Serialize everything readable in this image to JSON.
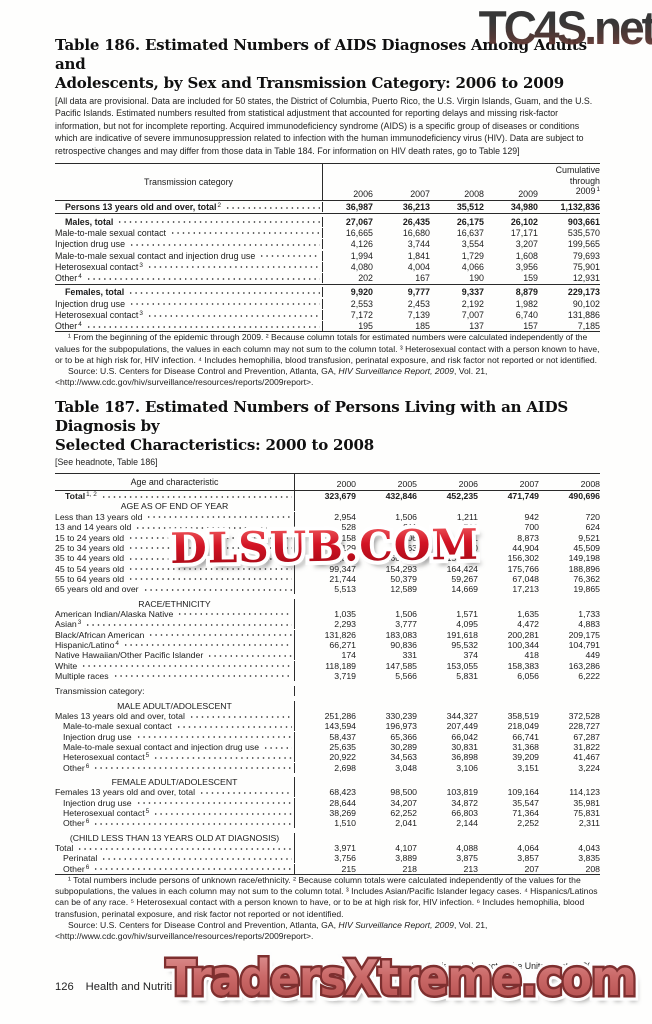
{
  "watermarks": {
    "top": "TC4S.net",
    "middle": "DLSUB.COM",
    "bottom": "TradersXtreme.com"
  },
  "colors": {
    "top_watermark_dark": "#2d2d2d",
    "top_watermark_red": "#8a4a42",
    "middle_watermark_red": "#c40e1e",
    "bottom_watermark_rose": "#c4605f",
    "rule_color": "#2a2a2a"
  },
  "table186": {
    "title_line1": "Table 186. Estimated Numbers of AIDS Diagnoses Among Adults and",
    "title_line2": "Adolescents, by Sex and Transmission Category: 2006 to 2009",
    "headnote": "[All data are provisional. Data are included for 50 states, the District of Columbia, Puerto Rico, the U.S. Virgin Islands, Guam, and the U.S. Pacific Islands. Estimated numbers resulted from statistical adjustment that accounted for reporting delays and missing risk-factor information, but not for incomplete reporting. Acquired immunodeficiency syndrome (AIDS) is a specific group of diseases or conditions which are indicative of severe immunosuppression related to infection with the human immunodeficiency virus (HIV). Data are subject to retrospective changes and may differ from those data in Table 184. For information on HIV death rates, go to Table 129]",
    "col_label": "Transmission category",
    "years": [
      "2006",
      "2007",
      "2008",
      "2009"
    ],
    "cum_lines": [
      "Cumulative",
      "through"
    ],
    "cum_year": "2009",
    "cum_sup": "1",
    "rows": [
      {
        "label": "Persons 13 years old and over, total",
        "sup": "2",
        "level": "total",
        "bold": true,
        "values": [
          "36,987",
          "36,213",
          "35,512",
          "34,980",
          "1,132,836"
        ],
        "ruleAfter": true
      },
      {
        "label": "Males, total",
        "level": "total",
        "bold": true,
        "values": [
          "27,067",
          "26,435",
          "26,175",
          "26,102",
          "903,661"
        ]
      },
      {
        "label": "Male-to-male sexual contact",
        "values": [
          "16,665",
          "16,680",
          "16,637",
          "17,171",
          "535,570"
        ]
      },
      {
        "label": "Injection drug use",
        "values": [
          "4,126",
          "3,744",
          "3,554",
          "3,207",
          "199,565"
        ]
      },
      {
        "label": "Male-to-male sexual contact and injection drug use",
        "values": [
          "1,994",
          "1,841",
          "1,729",
          "1,608",
          "79,693"
        ]
      },
      {
        "label": "Heterosexual contact",
        "sup": "3",
        "values": [
          "4,080",
          "4,004",
          "4,066",
          "3,956",
          "75,901"
        ]
      },
      {
        "label": "Other",
        "sup": "4",
        "values": [
          "202",
          "167",
          "190",
          "159",
          "12,931"
        ],
        "ruleAfter": true
      },
      {
        "label": "Females, total",
        "level": "total",
        "bold": true,
        "values": [
          "9,920",
          "9,777",
          "9,337",
          "8,879",
          "229,173"
        ]
      },
      {
        "label": "Injection drug use",
        "values": [
          "2,553",
          "2,453",
          "2,192",
          "1,982",
          "90,102"
        ]
      },
      {
        "label": "Heterosexual contact",
        "sup": "3",
        "values": [
          "7,172",
          "7,139",
          "7,007",
          "6,740",
          "131,886"
        ]
      },
      {
        "label": "Other",
        "sup": "4",
        "values": [
          "195",
          "185",
          "137",
          "157",
          "7,185"
        ]
      }
    ],
    "footnotes": "¹ From the beginning of the epidemic through 2009. ² Because column totals for estimated numbers were calculated independently of the values for the subpopulations, the values in each column may not sum to the column total. ³ Heterosexual contact with a person known to have, or to be at high risk for, HIV infection. ⁴ Includes hemophilia, blood transfusion, perinatal exposure, and risk factor not reported or not identified.",
    "source_pre": "Source: U.S. Centers for Disease Control and Prevention, Atlanta, GA, ",
    "source_italic": "HIV Surveillance Report, 2009",
    "source_post": ", Vol. 21, <http://www.cdc.gov/hiv/surveillance/resources/reports/2009report>."
  },
  "table187": {
    "title_line1": "Table 187. Estimated Numbers of Persons Living with an AIDS Diagnosis by",
    "title_line2": "Selected Characteristics: 2000 to 2008",
    "headnote": "[See headnote, Table 186]",
    "col_label": "Age and characteristic",
    "years": [
      "2000",
      "2005",
      "2006",
      "2007",
      "2008"
    ],
    "rows": [
      {
        "label": "Total",
        "sup": "1, 2",
        "level": "total",
        "bold": true,
        "values": [
          "323,679",
          "432,846",
          "452,235",
          "471,749",
          "490,696"
        ]
      },
      {
        "type": "section",
        "label": "AGE AS OF END OF YEAR"
      },
      {
        "label": "Less than 13 years old",
        "values": [
          "2,954",
          "1,506",
          "1,211",
          "942",
          "720"
        ]
      },
      {
        "label": "13 and 14 years old",
        "values": [
          "528",
          "811",
          "766",
          "700",
          "624"
        ]
      },
      {
        "label": "15 to 24 years old",
        "values": [
          "5,158",
          "7,806",
          "8,281",
          "8,873",
          "9,521"
        ]
      },
      {
        "label": "25 to 34 years old",
        "values": [
          "53,129",
          "45,063",
          "45,270",
          "44,904",
          "45,509"
        ]
      },
      {
        "label": "35 to 44 years old",
        "values": [
          "135,306",
          "160,399",
          "158,347",
          "156,302",
          "149,198"
        ]
      },
      {
        "label": "45 to 54 years old",
        "values": [
          "99,347",
          "154,293",
          "164,424",
          "175,766",
          "188,896"
        ]
      },
      {
        "label": "55 to 64 years old",
        "values": [
          "21,744",
          "50,379",
          "59,267",
          "67,048",
          "76,362"
        ]
      },
      {
        "label": "65 years old and over",
        "values": [
          "5,513",
          "12,589",
          "14,669",
          "17,213",
          "19,865"
        ]
      },
      {
        "type": "section",
        "label": "RACE/ETHNICITY",
        "gap": true
      },
      {
        "label": "American Indian/Alaska Native",
        "values": [
          "1,035",
          "1,506",
          "1,571",
          "1,635",
          "1,733"
        ]
      },
      {
        "label": "Asian",
        "sup": "3",
        "values": [
          "2,293",
          "3,777",
          "4,095",
          "4,472",
          "4,883"
        ]
      },
      {
        "label": "Black/African American",
        "values": [
          "131,826",
          "183,083",
          "191,618",
          "200,281",
          "209,175"
        ]
      },
      {
        "label": "Hispanic/Latino",
        "sup": "4",
        "values": [
          "66,271",
          "90,836",
          "95,532",
          "100,344",
          "104,791"
        ]
      },
      {
        "label": "Native Hawaiian/Other Pacific Islander",
        "values": [
          "174",
          "331",
          "374",
          "418",
          "449"
        ]
      },
      {
        "label": "White",
        "values": [
          "118,189",
          "147,585",
          "153,055",
          "158,383",
          "163,286"
        ]
      },
      {
        "label": "Multiple races",
        "values": [
          "3,719",
          "5,566",
          "5,831",
          "6,056",
          "6,222"
        ]
      },
      {
        "type": "plain",
        "label": "Transmission category:",
        "gap": true
      },
      {
        "type": "section",
        "label": "MALE ADULT/ADOLESCENT",
        "gap": true
      },
      {
        "label": "Males 13 years old and over, total",
        "values": [
          "251,286",
          "330,239",
          "344,327",
          "358,519",
          "372,528"
        ]
      },
      {
        "label": "Male-to-male sexual contact",
        "level": "sub",
        "values": [
          "143,594",
          "196,973",
          "207,449",
          "218,049",
          "228,727"
        ]
      },
      {
        "label": "Injection drug use",
        "level": "sub",
        "values": [
          "58,437",
          "65,366",
          "66,042",
          "66,741",
          "67,287"
        ]
      },
      {
        "label": "Male-to-male sexual contact and injection drug use",
        "level": "sub",
        "values": [
          "25,635",
          "30,289",
          "30,831",
          "31,368",
          "31,822"
        ]
      },
      {
        "label": "Heterosexual contact",
        "sup": "5",
        "level": "sub",
        "values": [
          "20,922",
          "34,563",
          "36,898",
          "39,209",
          "41,467"
        ]
      },
      {
        "label": "Other",
        "sup": "6",
        "level": "sub",
        "values": [
          "2,698",
          "3,048",
          "3,106",
          "3,151",
          "3,224"
        ]
      },
      {
        "type": "section",
        "label": "FEMALE ADULT/ADOLESCENT",
        "gap": true
      },
      {
        "label": "Females 13 years old and over, total",
        "values": [
          "68,423",
          "98,500",
          "103,819",
          "109,164",
          "114,123"
        ]
      },
      {
        "label": "Injection drug use",
        "level": "sub",
        "values": [
          "28,644",
          "34,207",
          "34,872",
          "35,547",
          "35,981"
        ]
      },
      {
        "label": "Heterosexual contact",
        "sup": "5",
        "level": "sub",
        "values": [
          "38,269",
          "62,252",
          "66,803",
          "71,364",
          "75,831"
        ]
      },
      {
        "label": "Other",
        "sup": "6",
        "level": "sub",
        "values": [
          "1,510",
          "2,041",
          "2,144",
          "2,252",
          "2,311"
        ]
      },
      {
        "type": "section",
        "label": "(CHILD LESS THAN 13 YEARS OLD AT DIAGNOSIS)",
        "gap": true
      },
      {
        "label": "Total",
        "values": [
          "3,971",
          "4,107",
          "4,088",
          "4,064",
          "4,043"
        ]
      },
      {
        "label": "Perinatal",
        "level": "sub",
        "values": [
          "3,756",
          "3,889",
          "3,875",
          "3,857",
          "3,835"
        ]
      },
      {
        "label": "Other",
        "sup": "6",
        "level": "sub",
        "values": [
          "215",
          "218",
          "213",
          "207",
          "208"
        ]
      }
    ],
    "footnotes": "¹ Total numbers include persons of unknown race/ethnicity. ² Because column totals were calculated independently of the values for the subpopulations, the values in each column may not sum to the column total. ³ Includes Asian/Pacific Islander legacy cases. ⁴ Hispanics/Latinos can be of any race. ⁵ Heterosexual contact with a person known to have, or to be at high risk for, HIV infection. ⁶ Includes hemophilia, blood transfusion, perinatal exposure, and risk factor not reported or not identified.",
    "source_pre": "Source: U.S. Centers for Disease Control and Prevention, Atlanta, GA, ",
    "source_italic": "HIV Surveillance Report, 2009",
    "source_post": ", Vol. 21, <http://www.cdc.gov/hiv/surveillance/resources/reports/2009report>."
  },
  "footer": {
    "page_number": "126",
    "section_title": "Health and Nutrition",
    "source_line": "U.S. Census Bureau, Statistical Abstract of the United States: 2012"
  }
}
